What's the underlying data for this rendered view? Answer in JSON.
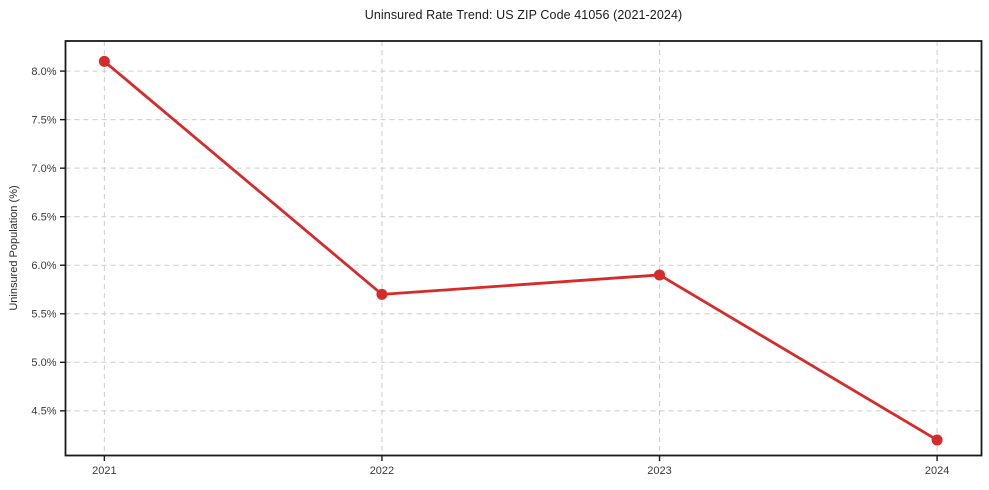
{
  "chart_data": {
    "type": "line",
    "title": "Uninsured Rate Trend: US ZIP Code 41056 (2021-2024)",
    "xlabel": "",
    "ylabel": "Uninsured Population (%)",
    "x": [
      2021,
      2022,
      2023,
      2024
    ],
    "values": [
      8.1,
      5.7,
      5.9,
      4.2
    ],
    "xticks": [
      2021,
      2022,
      2023,
      2024
    ],
    "xtick_labels": [
      "2021",
      "2022",
      "2023",
      "2024"
    ],
    "yticks": [
      4.5,
      5.0,
      5.5,
      6.0,
      6.5,
      7.0,
      7.5,
      8.0
    ],
    "ytick_labels": [
      "4.5%",
      "5.0%",
      "5.5%",
      "6.0%",
      "6.5%",
      "7.0%",
      "7.5%",
      "8.0%"
    ],
    "xlim": [
      2020.86,
      2024.16
    ],
    "ylim": [
      4.04,
      8.31
    ],
    "grid": true,
    "grid_style": "dashed",
    "legend": false,
    "line_color": "#d62b2b",
    "marker_color": "#d62b2b",
    "grid_color": "#cccccc",
    "spine_color": "#1a1a1a",
    "tick_label_color": "#3a3a3a",
    "background": "#ffffff"
  }
}
